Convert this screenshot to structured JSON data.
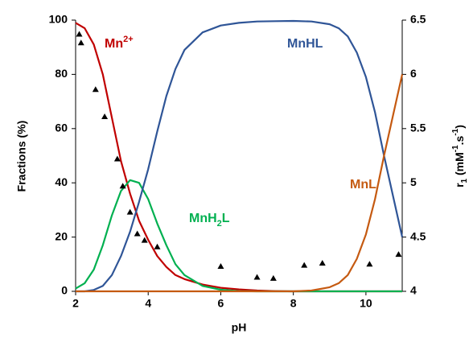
{
  "chart_data": {
    "type": "line",
    "x_label": "pH",
    "y_label": "Fractions (%)",
    "y2_label_parts": [
      "r",
      "1",
      " (mM",
      "-1",
      ".s",
      "-1",
      ")"
    ],
    "x": [
      2,
      2.25,
      2.5,
      2.75,
      3,
      3.25,
      3.5,
      3.75,
      4,
      4.25,
      4.5,
      4.75,
      5,
      5.5,
      6,
      6.5,
      7,
      7.5,
      8,
      8.5,
      9,
      9.25,
      9.5,
      9.75,
      10,
      10.25,
      10.5,
      10.75,
      11
    ],
    "xlim": [
      2,
      11
    ],
    "xticks": [
      2,
      4,
      6,
      8,
      10
    ],
    "ylim": [
      0,
      100
    ],
    "yticks": [
      0,
      20,
      40,
      60,
      80,
      100
    ],
    "y2lim": [
      4,
      6.5
    ],
    "y2ticks": [
      4,
      4.5,
      5,
      5.5,
      6,
      6.5
    ],
    "series": [
      {
        "label_parts": [
          "Mn",
          "2+"
        ],
        "color": "#c00000",
        "values": [
          99,
          97,
          91,
          80,
          64,
          48,
          36,
          26,
          19,
          13,
          9,
          6,
          4.5,
          2.5,
          1.3,
          0.7,
          0.3,
          0.1,
          0,
          0,
          0,
          0,
          0,
          0,
          0,
          0,
          0,
          0,
          0
        ]
      },
      {
        "label_parts": [
          "MnH",
          "2",
          "L"
        ],
        "color": "#00b050",
        "values": [
          1,
          3,
          8,
          17,
          28,
          37,
          41,
          40,
          34,
          25,
          17,
          10,
          6,
          2,
          0.6,
          0.1,
          0,
          0,
          0,
          0,
          0,
          0,
          0,
          0,
          0,
          0,
          0,
          0,
          0
        ]
      },
      {
        "label_parts": [
          "MnHL"
        ],
        "color": "#2f5597",
        "values": [
          0,
          0,
          0.5,
          2,
          6,
          13,
          22,
          33,
          45,
          59,
          72,
          82,
          89,
          95.5,
          98,
          99,
          99.5,
          99.6,
          99.7,
          99.5,
          98.5,
          97,
          94,
          88,
          79,
          66,
          50,
          35,
          20
        ]
      },
      {
        "label_parts": [
          "MnL"
        ],
        "color": "#c55a11",
        "values": [
          0,
          0,
          0,
          0,
          0,
          0,
          0,
          0,
          0,
          0,
          0,
          0,
          0,
          0,
          0,
          0,
          0,
          0,
          0,
          0.3,
          1.5,
          3,
          6,
          12,
          21,
          34,
          50,
          65,
          80
        ]
      }
    ],
    "scatter": {
      "axis": "y2",
      "color": "#000000",
      "x": [
        2.1,
        2.15,
        2.55,
        2.8,
        3.15,
        3.3,
        3.5,
        3.7,
        3.9,
        4.25,
        6,
        7,
        7.45,
        8.3,
        8.8,
        10.1,
        10.9
      ],
      "values": [
        6.37,
        6.29,
        5.86,
        5.61,
        5.22,
        4.97,
        4.73,
        4.53,
        4.47,
        4.41,
        4.23,
        4.13,
        4.12,
        4.24,
        4.26,
        4.25,
        4.34
      ]
    }
  }
}
